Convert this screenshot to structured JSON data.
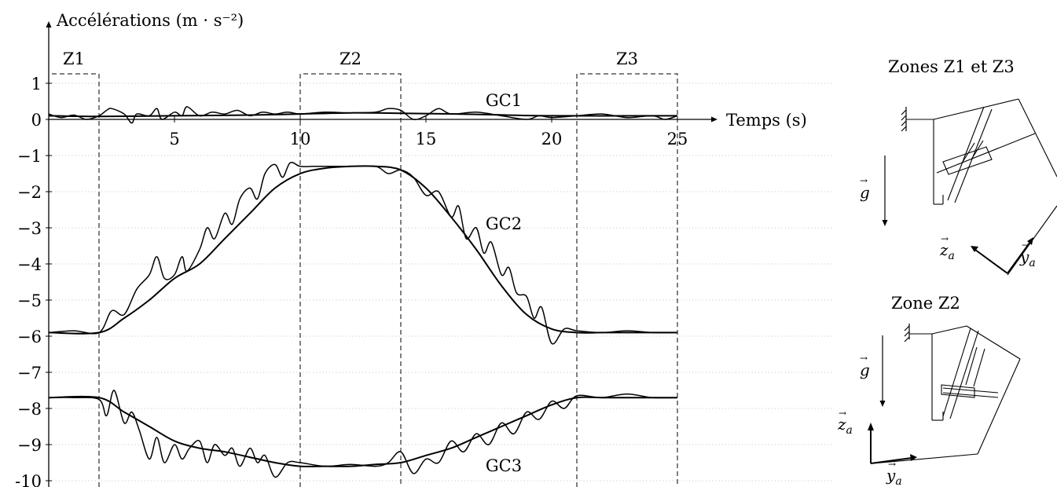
{
  "chart_data": {
    "type": "line",
    "title": "",
    "ylabel": "Accélérations (m · s⁻²)",
    "xlabel": "Temps (s)",
    "x_ticks": [
      "5",
      "10",
      "15",
      "20",
      "25"
    ],
    "y_ticks": [
      "1",
      "0",
      "−1",
      "−2",
      "−3",
      "−4",
      "−5",
      "−6",
      "−7",
      "−8",
      "−9",
      "-10"
    ],
    "xlim": [
      0,
      25
    ],
    "ylim": [
      -10,
      1.3
    ],
    "grid": "dotted horizontal",
    "zones": [
      {
        "label": "Z1",
        "x": [
          0,
          2
        ]
      },
      {
        "label": "Z2",
        "x": [
          10,
          14
        ]
      },
      {
        "label": "Z3",
        "x": [
          21,
          25
        ]
      }
    ],
    "series": [
      {
        "name": "GC1",
        "smooth": {
          "x": [
            0,
            2,
            5,
            8,
            10,
            12,
            14,
            17,
            20,
            25
          ],
          "y": [
            0.1,
            0.08,
            0.1,
            0.12,
            0.15,
            0.18,
            0.17,
            0.14,
            0.1,
            0.1
          ]
        },
        "raw": {
          "x": [
            0,
            0.5,
            1,
            1.5,
            2,
            2.3,
            2.5,
            3,
            3.3,
            3.5,
            4,
            4.3,
            4.5,
            5,
            5.3,
            5.5,
            6,
            6.5,
            7,
            7.5,
            8,
            8.5,
            9,
            9.5,
            10,
            11,
            12,
            13,
            13.5,
            14,
            14.5,
            15,
            15.5,
            16,
            17,
            18,
            19,
            19.5,
            20,
            21,
            22,
            23,
            24,
            24.5,
            25
          ],
          "y": [
            0.15,
            0.05,
            0.12,
            0.0,
            0.1,
            0.25,
            0.3,
            0.15,
            -0.1,
            0.15,
            0.1,
            0.3,
            0.0,
            0.2,
            0.1,
            0.35,
            0.1,
            0.2,
            0.15,
            0.25,
            0.1,
            0.2,
            0.15,
            0.2,
            0.15,
            0.2,
            0.18,
            0.2,
            0.3,
            0.25,
            0.0,
            0.1,
            0.3,
            0.15,
            0.2,
            0.1,
            0.0,
            0.1,
            0.05,
            0.1,
            0.15,
            0.05,
            0.1,
            0.0,
            0.1
          ]
        }
      },
      {
        "name": "GC2",
        "smooth": {
          "x": [
            0,
            2,
            3,
            4,
            5,
            6,
            7,
            8,
            9,
            10,
            11,
            12,
            13,
            14,
            15,
            16,
            17,
            18,
            19,
            20,
            21,
            22,
            23,
            24,
            25
          ],
          "y": [
            -5.9,
            -5.9,
            -5.5,
            -5.0,
            -4.4,
            -4.0,
            -3.3,
            -2.6,
            -1.9,
            -1.5,
            -1.35,
            -1.3,
            -1.3,
            -1.4,
            -1.9,
            -2.7,
            -3.6,
            -4.6,
            -5.4,
            -5.8,
            -5.9,
            -5.9,
            -5.9,
            -5.9,
            -5.9
          ]
        },
        "raw": {
          "x": [
            0,
            1,
            2,
            2.5,
            3,
            3.5,
            4,
            4.3,
            4.6,
            5,
            5.3,
            5.5,
            6,
            6.3,
            6.6,
            7,
            7.3,
            7.6,
            8,
            8.3,
            8.6,
            9,
            9.3,
            9.6,
            10,
            10.5,
            11,
            12,
            13,
            13.5,
            14,
            14.5,
            15,
            15.5,
            16,
            16.3,
            16.6,
            17,
            17.3,
            17.6,
            18,
            18.3,
            18.6,
            19,
            19.3,
            19.6,
            20,
            20.5,
            21,
            22,
            23,
            24,
            25
          ],
          "y": [
            -5.9,
            -5.85,
            -5.9,
            -5.3,
            -5.4,
            -4.7,
            -4.3,
            -3.8,
            -4.4,
            -4.3,
            -3.8,
            -4.2,
            -3.6,
            -3.0,
            -3.3,
            -2.6,
            -2.9,
            -2.2,
            -1.9,
            -2.2,
            -1.5,
            -1.25,
            -1.6,
            -1.2,
            -1.3,
            -1.3,
            -1.3,
            -1.3,
            -1.3,
            -1.5,
            -1.4,
            -1.6,
            -2.1,
            -2.0,
            -2.7,
            -2.4,
            -3.3,
            -3.0,
            -3.7,
            -3.4,
            -4.3,
            -4.1,
            -4.8,
            -4.9,
            -5.5,
            -5.2,
            -6.2,
            -5.8,
            -5.85,
            -5.9,
            -5.85,
            -5.9,
            -5.9
          ]
        }
      },
      {
        "name": "GC3",
        "smooth": {
          "x": [
            0,
            2,
            3,
            4,
            5,
            6,
            7,
            8,
            9,
            10,
            11,
            12,
            13,
            14,
            15,
            16,
            17,
            18,
            19,
            20,
            21,
            22,
            23,
            24,
            25
          ],
          "y": [
            -7.7,
            -7.7,
            -8.1,
            -8.5,
            -8.9,
            -9.1,
            -9.2,
            -9.35,
            -9.5,
            -9.6,
            -9.6,
            -9.6,
            -9.55,
            -9.5,
            -9.3,
            -9.1,
            -8.8,
            -8.5,
            -8.2,
            -7.9,
            -7.7,
            -7.7,
            -7.7,
            -7.7,
            -7.7
          ]
        },
        "raw": {
          "x": [
            0,
            1,
            2,
            2.3,
            2.6,
            3,
            3.3,
            3.6,
            4,
            4.3,
            4.6,
            5,
            5.3,
            5.6,
            6,
            6.3,
            6.6,
            7,
            7.3,
            7.6,
            8,
            8.3,
            8.6,
            9,
            9.5,
            10,
            11,
            12,
            13,
            13.5,
            14,
            14.5,
            15,
            15.5,
            16,
            16.5,
            17,
            17.5,
            18,
            18.5,
            19,
            19.5,
            20,
            20.5,
            21,
            22,
            23,
            24,
            25
          ],
          "y": [
            -7.7,
            -7.7,
            -7.75,
            -8.2,
            -7.5,
            -8.4,
            -8.1,
            -8.6,
            -9.4,
            -8.8,
            -9.5,
            -9.0,
            -9.4,
            -9.1,
            -8.9,
            -9.5,
            -9.0,
            -9.3,
            -9.1,
            -9.6,
            -9.1,
            -9.5,
            -9.3,
            -9.9,
            -9.5,
            -9.5,
            -9.6,
            -9.55,
            -9.6,
            -9.5,
            -9.2,
            -9.8,
            -9.4,
            -9.5,
            -8.9,
            -9.2,
            -8.7,
            -9.0,
            -8.4,
            -8.7,
            -8.1,
            -8.3,
            -7.8,
            -8.0,
            -7.65,
            -7.7,
            -7.6,
            -7.7,
            -7.7
          ]
        }
      }
    ]
  },
  "side_panels": {
    "top_title": "Zones Z1 et Z3",
    "bottom_title": "Zone Z2",
    "gravity_label": "g",
    "za_label": "z",
    "ya_label": "y",
    "subscript": "a",
    "arrow_glyph": "→"
  }
}
